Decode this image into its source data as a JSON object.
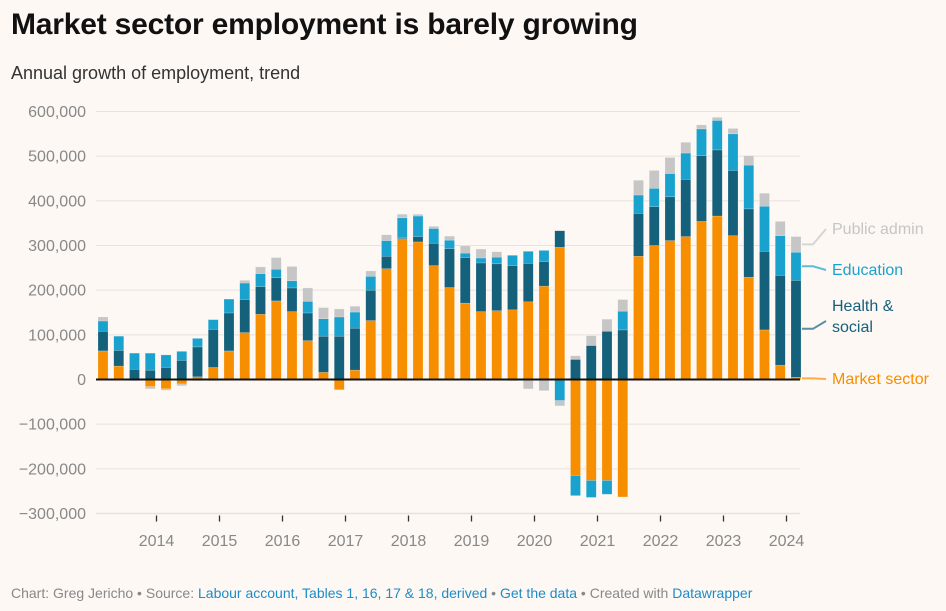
{
  "header": {
    "title": "Market sector employment is barely growing",
    "subtitle": "Annual growth of employment, trend"
  },
  "footer": {
    "chart_by": "Chart: Greg Jericho",
    "sep1": " • ",
    "source_prefix": "Source: ",
    "source_link": "Labour account, Tables 1, 16, 17 & 18, derived",
    "sep2": " • ",
    "data_link": "Get the data",
    "sep3": " • ",
    "created_prefix": "Created with ",
    "created_link": "Datawrapper"
  },
  "colors": {
    "market_sector": "#f78e00",
    "health_social": "#15617c",
    "education": "#1aa2ce",
    "public_admin": "#c6c6c6",
    "background": "#fdf8f4",
    "link": "#1d8cc7"
  },
  "chart_data": {
    "type": "bar",
    "stacked": true,
    "title": "Market sector employment is barely growing",
    "subtitle": "Annual growth of employment, trend",
    "xlabel": "",
    "ylabel": "",
    "ylim": [
      -300000,
      600000
    ],
    "yticks": [
      600000,
      500000,
      400000,
      300000,
      200000,
      100000,
      0,
      -100000,
      -200000,
      -300000
    ],
    "ytick_labels": [
      "600,000",
      "500,000",
      "400,000",
      "300,000",
      "200,000",
      "100,000",
      "0",
      "−100,000",
      "−200,000",
      "−300,000"
    ],
    "xtick_labels": [
      "2014",
      "2015",
      "2016",
      "2017",
      "2018",
      "2019",
      "2020",
      "2021",
      "2022",
      "2023",
      "2024"
    ],
    "grid": true,
    "legend": "right, inline labels at series end",
    "categories": [
      "Mar 2013",
      "Jun 2013",
      "Sep 2013",
      "Dec 2013",
      "Mar 2014",
      "Jun 2014",
      "Sep 2014",
      "Dec 2014",
      "Mar 2015",
      "Jun 2015",
      "Sep 2015",
      "Dec 2015",
      "Mar 2016",
      "Jun 2016",
      "Sep 2016",
      "Dec 2016",
      "Mar 2017",
      "Jun 2017",
      "Sep 2017",
      "Dec 2017",
      "Mar 2018",
      "Jun 2018",
      "Sep 2018",
      "Dec 2018",
      "Mar 2019",
      "Jun 2019",
      "Sep 2019",
      "Dec 2019",
      "Mar 2020",
      "Jun 2020",
      "Sep 2020",
      "Dec 2020",
      "Mar 2021",
      "Jun 2021",
      "Sep 2021",
      "Dec 2021",
      "Mar 2022",
      "Jun 2022",
      "Sep 2022",
      "Dec 2022",
      "Mar 2023",
      "Jun 2023",
      "Sep 2023",
      "Dec 2023",
      "Mar 2024"
    ],
    "series": [
      {
        "name": "Market sector",
        "key": "market_sector",
        "values": [
          64000,
          30000,
          0,
          -16000,
          -21000,
          -10000,
          6000,
          27000,
          64000,
          105000,
          146000,
          176000,
          152000,
          87000,
          16000,
          -23000,
          21000,
          132000,
          248000,
          315000,
          308000,
          255000,
          206000,
          171000,
          152000,
          154000,
          156000,
          174000,
          209000,
          296000,
          -215000,
          -226000,
          -226000,
          -263000,
          276000,
          300000,
          311000,
          320000,
          354000,
          366000,
          322000,
          229000,
          111000,
          32000,
          5000
        ]
      },
      {
        "name": "Health & social",
        "key": "health_social",
        "values": [
          44000,
          35000,
          23000,
          21000,
          27000,
          43000,
          67000,
          85000,
          85000,
          74000,
          62000,
          52000,
          53000,
          62000,
          81000,
          97000,
          94000,
          68000,
          28000,
          2000,
          12000,
          50000,
          87000,
          102000,
          109000,
          105000,
          99000,
          86000,
          55000,
          37000,
          45000,
          76000,
          108000,
          111000,
          96000,
          87000,
          98000,
          128000,
          147000,
          148000,
          146000,
          153000,
          176000,
          201000,
          217000
        ]
      },
      {
        "name": "Education",
        "key": "education",
        "values": [
          23000,
          32000,
          36000,
          38000,
          28000,
          20000,
          19000,
          22000,
          31000,
          37000,
          29000,
          19000,
          16000,
          26000,
          39000,
          43000,
          36000,
          31000,
          35000,
          45000,
          46000,
          33000,
          19000,
          10000,
          11000,
          15000,
          23000,
          27000,
          25000,
          -47000,
          -45000,
          -38000,
          -31000,
          42000,
          41000,
          41000,
          52000,
          59000,
          60000,
          66000,
          82000,
          98000,
          101000,
          89000,
          63000
        ]
      },
      {
        "name": "Public admin",
        "key": "public_admin",
        "values": [
          9000,
          0,
          -3000,
          -5000,
          -3000,
          -4000,
          -3000,
          -3000,
          0,
          6000,
          15000,
          26000,
          32000,
          30000,
          25000,
          18000,
          13000,
          12000,
          13000,
          8000,
          4000,
          5000,
          9000,
          16000,
          20000,
          12000,
          -3000,
          -21000,
          -25000,
          -12000,
          8000,
          22000,
          27000,
          26000,
          33000,
          40000,
          36000,
          24000,
          9000,
          7000,
          12000,
          21000,
          29000,
          32000,
          35000
        ]
      }
    ],
    "series_labels": [
      {
        "key": "public_admin",
        "lines": [
          "Public admin"
        ]
      },
      {
        "key": "education",
        "lines": [
          "Education"
        ]
      },
      {
        "key": "health_social",
        "lines": [
          "Health &",
          "social"
        ]
      },
      {
        "key": "market_sector",
        "lines": [
          "Market sector"
        ]
      }
    ]
  }
}
